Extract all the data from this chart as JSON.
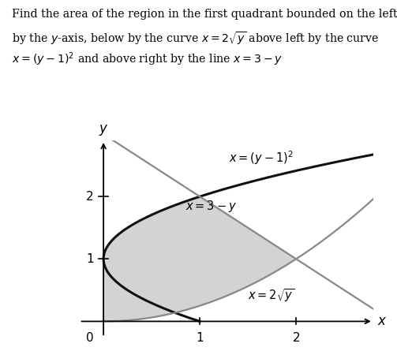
{
  "xlabel": "$x$",
  "ylabel": "$y$",
  "xlim": [
    -0.25,
    2.8
  ],
  "ylim": [
    -0.25,
    2.9
  ],
  "xticks": [
    1,
    2
  ],
  "yticks": [
    1,
    2
  ],
  "curve1_label": "$x = (y - 1)^2$",
  "curve2_label": "$x = 3 - y$",
  "curve3_label": "$x = 2\\sqrt{y}$",
  "shaded_color": "#cccccc",
  "shaded_alpha": 0.85,
  "curve_black_color": "#111111",
  "curve_gray_color": "#888888",
  "fig_width": 5.03,
  "fig_height": 4.45,
  "dpi": 100,
  "text_line1": "Find the area of the region in the first quadrant bounded on the left",
  "text_line2": "by the $y$-axis, below by the curve $x = 2\\sqrt{y}$ above left by the curve",
  "text_line3": "$x = (y - 1)^2$ and above right by the line $x = 3 - y$"
}
